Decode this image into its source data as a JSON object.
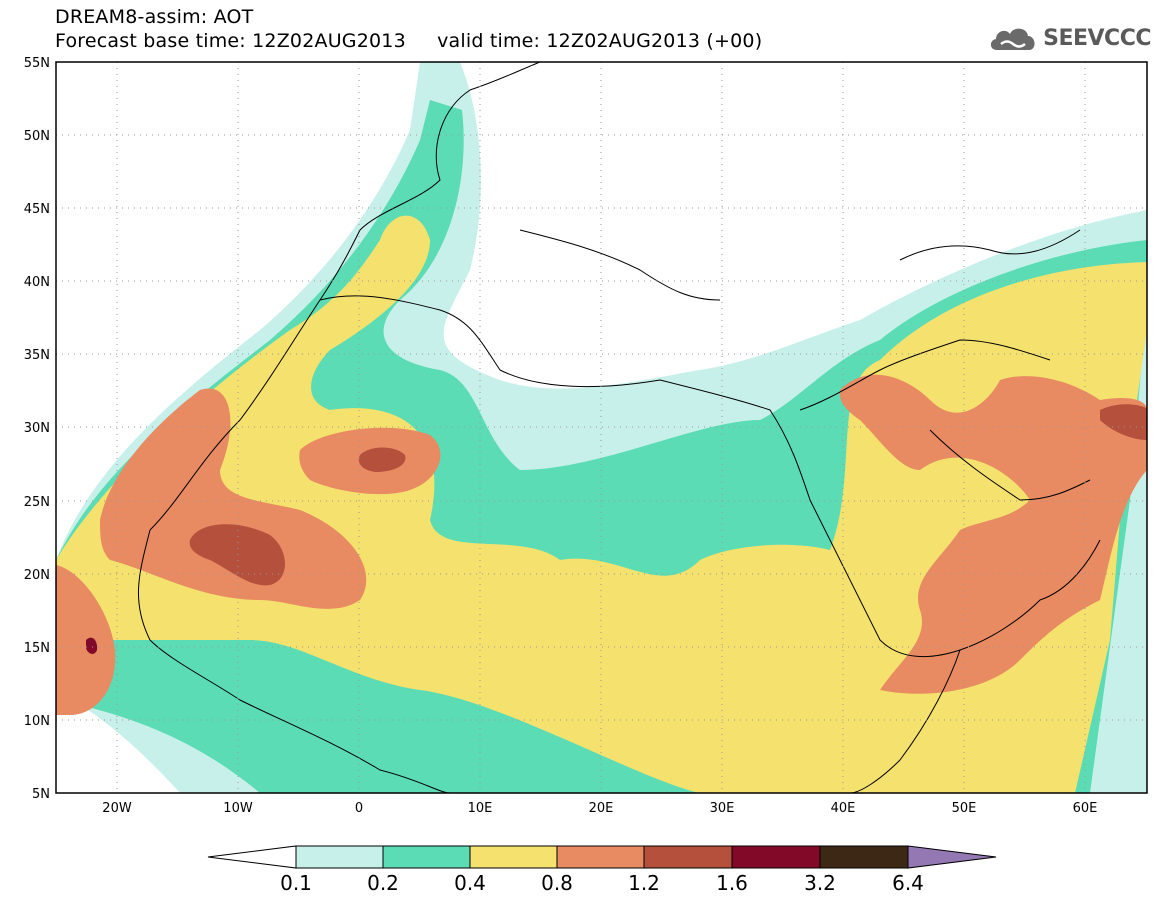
{
  "title": {
    "line1": "DREAM8-assim: AOT",
    "line2": "Forecast base time: 12Z02AUG2013     valid time: 12Z02AUG2013 (+00)"
  },
  "logo": {
    "text": "SEEVCCC",
    "icon": "cloud-icon"
  },
  "map": {
    "lat_ticks": [
      "55N",
      "50N",
      "45N",
      "40N",
      "35N",
      "30N",
      "25N",
      "20N",
      "15N",
      "10N",
      "5N"
    ],
    "lon_ticks": [
      "20W",
      "10W",
      "0",
      "10E",
      "20E",
      "30E",
      "40E",
      "50E",
      "60E"
    ],
    "lat_range": [
      5,
      55
    ],
    "lon_range": [
      -25,
      65
    ],
    "grid": "dotted"
  },
  "colorbar": {
    "labels": [
      "0.1",
      "0.2",
      "0.4",
      "0.8",
      "1.2",
      "1.6",
      "3.2",
      "6.4"
    ],
    "colors": [
      "#c8f0ea",
      "#5cdcb4",
      "#f5e16e",
      "#e88a62",
      "#b4503c",
      "#820a28",
      "#3c2814",
      "#9378b4"
    ]
  }
}
